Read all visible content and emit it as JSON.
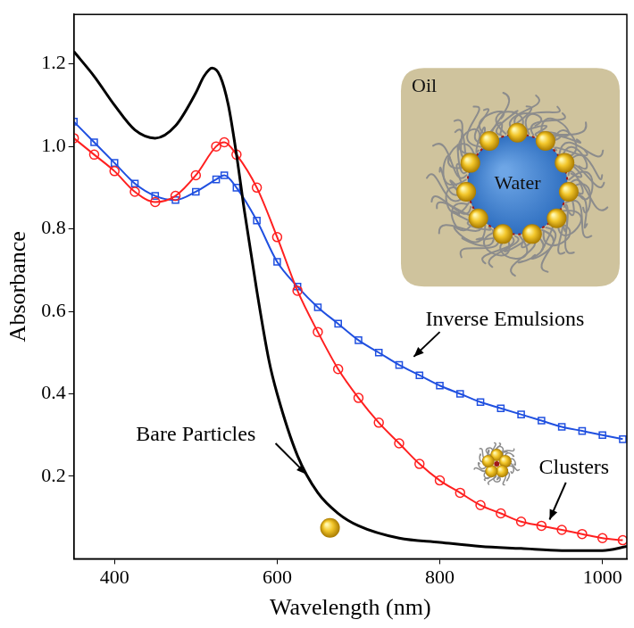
{
  "chart_data": {
    "type": "line",
    "x_label": "Wavelength (nm)",
    "y_label": "Absorbance",
    "xlim": [
      350,
      1030
    ],
    "xticks": [
      400,
      600,
      800,
      1000
    ],
    "ylim": [
      0,
      1.32
    ],
    "yticks": [
      0.2,
      0.4,
      0.6,
      0.8,
      {
        "value": 1,
        "label": "1.0"
      },
      1.2
    ],
    "grid": false,
    "series": [
      {
        "name": "Bare Particles",
        "color": "#000000",
        "marker": "none",
        "line_style": "solid",
        "x": [
          350,
          375,
          400,
          425,
          450,
          475,
          500,
          510,
          520,
          530,
          540,
          550,
          560,
          575,
          590,
          600,
          625,
          650,
          675,
          700,
          750,
          800,
          850,
          900,
          950,
          1000,
          1030
        ],
        "values": [
          1.23,
          1.17,
          1.1,
          1.04,
          1.02,
          1.05,
          1.13,
          1.17,
          1.19,
          1.17,
          1.1,
          0.98,
          0.84,
          0.65,
          0.48,
          0.4,
          0.25,
          0.16,
          0.11,
          0.08,
          0.05,
          0.04,
          0.03,
          0.025,
          0.02,
          0.02,
          0.03
        ]
      },
      {
        "name": "Clusters",
        "color": "#ff2020",
        "marker": "circle",
        "line_style": "solid",
        "x": [
          350,
          375,
          400,
          425,
          450,
          475,
          500,
          525,
          535,
          550,
          575,
          600,
          625,
          650,
          675,
          700,
          725,
          750,
          775,
          800,
          825,
          850,
          875,
          900,
          925,
          950,
          975,
          1000,
          1025
        ],
        "values": [
          1.02,
          0.98,
          0.94,
          0.89,
          0.865,
          0.88,
          0.93,
          1.0,
          1.01,
          0.98,
          0.9,
          0.78,
          0.65,
          0.55,
          0.46,
          0.39,
          0.33,
          0.28,
          0.23,
          0.19,
          0.16,
          0.13,
          0.11,
          0.09,
          0.08,
          0.07,
          0.06,
          0.05,
          0.045
        ]
      },
      {
        "name": "Inverse Emulsions",
        "color": "#2050e0",
        "marker": "square",
        "line_style": "solid",
        "x": [
          350,
          375,
          400,
          425,
          450,
          475,
          500,
          525,
          535,
          550,
          575,
          600,
          625,
          650,
          675,
          700,
          725,
          750,
          775,
          800,
          825,
          850,
          875,
          900,
          925,
          950,
          975,
          1000,
          1025
        ],
        "values": [
          1.06,
          1.01,
          0.96,
          0.91,
          0.88,
          0.87,
          0.89,
          0.92,
          0.93,
          0.9,
          0.82,
          0.72,
          0.66,
          0.61,
          0.57,
          0.53,
          0.5,
          0.47,
          0.445,
          0.42,
          0.4,
          0.38,
          0.365,
          0.35,
          0.335,
          0.32,
          0.31,
          0.3,
          0.29
        ]
      }
    ],
    "annotations": [
      "Inverse Emulsions",
      "Bare Particles",
      "Clusters"
    ],
    "inset_labels": [
      "Oil",
      "Water"
    ]
  }
}
